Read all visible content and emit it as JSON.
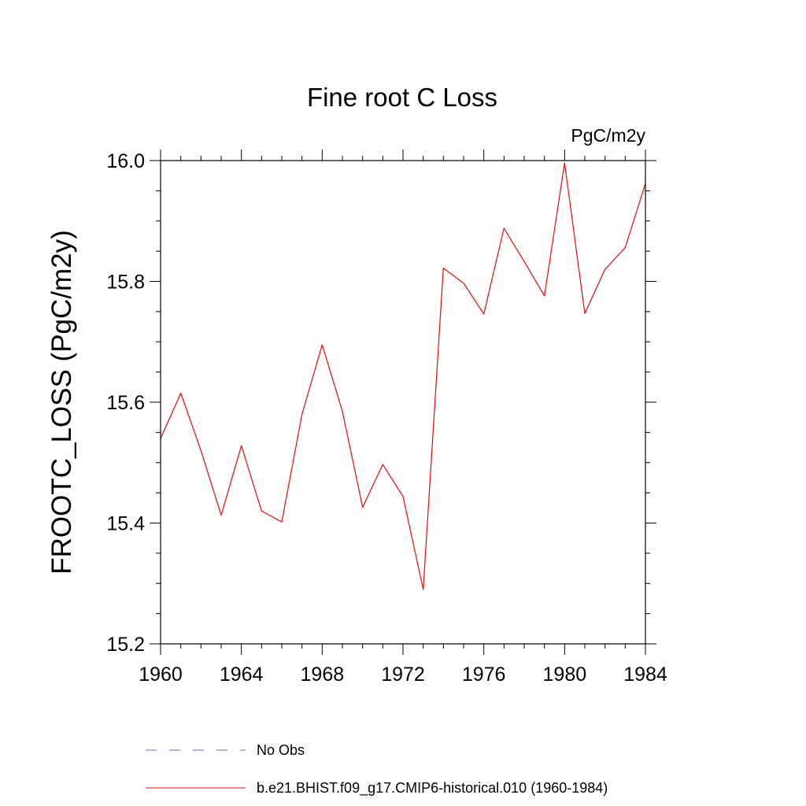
{
  "chart_data": {
    "type": "line",
    "title": "Fine root C Loss",
    "units_label": "PgC/m2y",
    "ylabel": "FROOTC_LOSS  (PgC/m2y)",
    "xlabel": "",
    "xlim": [
      1960,
      1984
    ],
    "ylim": [
      15.2,
      16.0
    ],
    "x_ticks": [
      1960,
      1964,
      1968,
      1972,
      1976,
      1980,
      1984
    ],
    "x_tick_labels": [
      "1960",
      "1964",
      "1968",
      "1972",
      "1976",
      "1980",
      "1984"
    ],
    "y_ticks": [
      15.2,
      15.4,
      15.6,
      15.8,
      16.0
    ],
    "y_tick_labels": [
      "15.2",
      "15.4",
      "15.6",
      "15.8",
      "16.0"
    ],
    "grid": false,
    "series": [
      {
        "name": "b.e21.BHIST.f09_g17.CMIP6-historical.010 (1960-1984)",
        "color": "#ff0000",
        "x": [
          1960,
          1961,
          1962,
          1963,
          1964,
          1965,
          1966,
          1967,
          1968,
          1969,
          1970,
          1971,
          1972,
          1973,
          1974,
          1975,
          1976,
          1977,
          1978,
          1979,
          1980,
          1981,
          1982,
          1983,
          1984
        ],
        "y": [
          15.54,
          15.615,
          15.52,
          15.413,
          15.528,
          15.42,
          15.402,
          15.58,
          15.695,
          15.585,
          15.426,
          15.497,
          15.444,
          15.29,
          15.822,
          15.797,
          15.746,
          15.888,
          15.833,
          15.776,
          15.996,
          15.747,
          15.82,
          15.856,
          15.962
        ]
      }
    ],
    "legend": {
      "placement": "bottom",
      "entries": [
        {
          "label": "No Obs",
          "color": "#6666cc",
          "style": "dashed"
        },
        {
          "label": "b.e21.BHIST.f09_g17.CMIP6-historical.010 (1960-1984)",
          "color": "#ff0000",
          "style": "solid"
        }
      ]
    }
  }
}
